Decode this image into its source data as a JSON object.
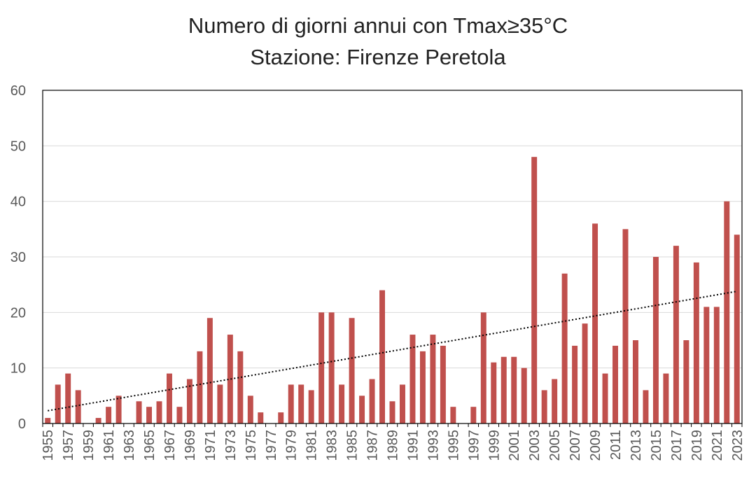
{
  "chart_data": {
    "type": "bar",
    "title": "Numero di giorni annui con Tmax≥35°C",
    "subtitle": "Stazione: Firenze Peretola",
    "categories": [
      "1955",
      "1956",
      "1957",
      "1958",
      "1959",
      "1960",
      "1961",
      "1962",
      "1963",
      "1964",
      "1965",
      "1966",
      "1967",
      "1968",
      "1969",
      "1970",
      "1971",
      "1972",
      "1973",
      "1974",
      "1975",
      "1976",
      "1977",
      "1978",
      "1979",
      "1980",
      "1981",
      "1982",
      "1983",
      "1984",
      "1985",
      "1986",
      "1987",
      "1988",
      "1989",
      "1990",
      "1991",
      "1992",
      "1993",
      "1994",
      "1995",
      "1996",
      "1997",
      "1998",
      "1999",
      "2000",
      "2001",
      "2002",
      "2003",
      "2004",
      "2005",
      "2006",
      "2007",
      "2008",
      "2009",
      "2010",
      "2011",
      "2012",
      "2013",
      "2014",
      "2015",
      "2016",
      "2017",
      "2018",
      "2019",
      "2020",
      "2021",
      "2022",
      "2023"
    ],
    "values": [
      1,
      7,
      9,
      6,
      0,
      1,
      3,
      5,
      0,
      4,
      3,
      4,
      9,
      3,
      8,
      13,
      19,
      7,
      16,
      13,
      5,
      2,
      0,
      2,
      7,
      7,
      6,
      20,
      20,
      7,
      19,
      5,
      8,
      24,
      4,
      7,
      16,
      13,
      16,
      14,
      3,
      0,
      3,
      20,
      11,
      12,
      12,
      10,
      48,
      6,
      8,
      27,
      14,
      18,
      36,
      9,
      14,
      35,
      15,
      6,
      30,
      9,
      32,
      15,
      29,
      21,
      21,
      40,
      34
    ],
    "tick_labels": [
      "1955",
      "1957",
      "1959",
      "1961",
      "1963",
      "1965",
      "1967",
      "1969",
      "1971",
      "1973",
      "1975",
      "1977",
      "1979",
      "1981",
      "1983",
      "1985",
      "1987",
      "1989",
      "1991",
      "1993",
      "1995",
      "1997",
      "1999",
      "2001",
      "2003",
      "2005",
      "2007",
      "2009",
      "2011",
      "2013",
      "2015",
      "2017",
      "2019",
      "2021",
      "2023"
    ],
    "yticks": [
      "0",
      "10",
      "20",
      "30",
      "40",
      "50",
      "60"
    ],
    "ylim": [
      0,
      60
    ],
    "xlabel": "",
    "ylabel": "",
    "grid": true,
    "trendline": {
      "type": "linear",
      "style": "dotted",
      "start": 2.3,
      "end": 23.8
    },
    "bar_color": "#C0504D",
    "trend_color": "#000000"
  }
}
